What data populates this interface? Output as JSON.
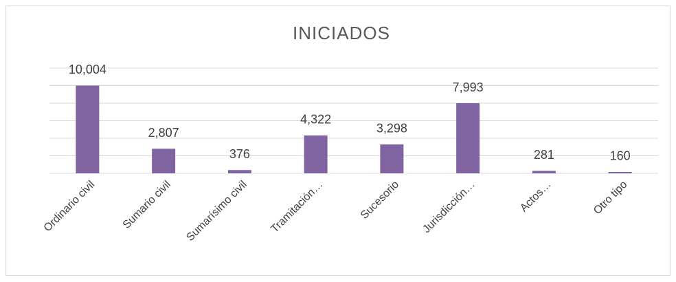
{
  "chart_data": {
    "type": "bar",
    "title": "INICIADOS",
    "categories": [
      "Ordinario civil",
      "Sumario civil",
      "Sumarísimo civil",
      "Tramitación…",
      "Sucesorio",
      "Jurisdicción…",
      "Actos…",
      "Otro tipo"
    ],
    "values": [
      10004,
      2807,
      376,
      4322,
      3298,
      7993,
      281,
      160
    ],
    "value_labels": [
      "10,004",
      "2,807",
      "376",
      "4,322",
      "3,298",
      "7,993",
      "281",
      "160"
    ],
    "color": "#8064a2",
    "ylim": [
      0,
      12000
    ],
    "yticks": [
      0,
      2000,
      4000,
      6000,
      8000,
      10000,
      12000
    ],
    "grid": true
  }
}
